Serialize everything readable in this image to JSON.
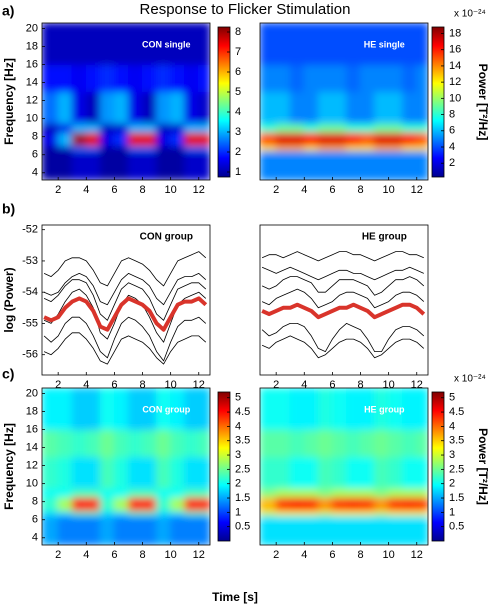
{
  "title": "Response to Flicker Stimulation",
  "panel_labels": [
    "a)",
    "b)",
    "c)"
  ],
  "xlabel": "Time [s]",
  "chart_data": [
    {
      "type": "heatmap",
      "title": "CON single",
      "ylabel": "Frequency [Hz]",
      "xlim": [
        0.85,
        12.8
      ],
      "xticks": [
        2,
        4,
        6,
        8,
        10,
        12
      ],
      "ylim": [
        3.2,
        20.6
      ],
      "yticks": [
        4,
        6,
        8,
        10,
        12,
        14,
        16,
        18,
        20
      ],
      "xbins": [
        0.85,
        2,
        3,
        4,
        5,
        6,
        7,
        8,
        9,
        10,
        11,
        12,
        12.8
      ],
      "ybins": [
        3.2,
        6.5,
        7,
        8.5,
        9.5,
        13,
        16,
        20.6
      ],
      "z": [
        [
          1,
          1,
          1.3,
          1.3,
          1,
          1,
          1.3,
          1.3,
          1,
          1,
          1.3,
          1.3
        ],
        [
          1,
          1.2,
          2.5,
          2.5,
          1,
          1,
          2.5,
          2.5,
          1,
          1,
          2.5,
          2.5
        ],
        [
          1.5,
          3,
          8,
          7.5,
          1.5,
          2,
          7.5,
          7.5,
          1.5,
          2,
          7.5,
          7.5
        ],
        [
          1.2,
          1.5,
          3,
          3,
          1.2,
          1.3,
          3,
          3,
          1.2,
          1.3,
          3,
          3
        ],
        [
          2.5,
          3,
          1.5,
          1.2,
          2.8,
          3,
          1.5,
          1.2,
          2.8,
          3,
          1.5,
          1.3
        ],
        [
          1.8,
          1.8,
          1.6,
          1.8,
          2,
          1.8,
          1.6,
          1.8,
          2,
          1.8,
          1.6,
          1.8
        ],
        [
          1.2,
          1.2,
          1.2,
          1.2,
          1.2,
          1.2,
          1.2,
          1.2,
          1.2,
          1.2,
          1.2,
          1.2
        ]
      ],
      "colorbar": {
        "lim": [
          0.75,
          8.25
        ],
        "ticks": [
          1,
          2,
          3,
          4,
          5,
          6,
          7,
          8
        ]
      }
    },
    {
      "type": "heatmap",
      "title": "HE single",
      "xlim": [
        0.85,
        12.8
      ],
      "xticks": [
        2,
        4,
        6,
        8,
        10,
        12
      ],
      "ylim": [
        3.2,
        20.6
      ],
      "xbins": [
        0.85,
        2,
        3,
        4,
        5,
        6,
        7,
        8,
        9,
        10,
        11,
        12,
        12.8
      ],
      "ybins": [
        3.2,
        6.5,
        7,
        8.5,
        9.5,
        13,
        16,
        20.6
      ],
      "z": [
        [
          5,
          5,
          5,
          5,
          5,
          5,
          5,
          5,
          5,
          5,
          5,
          5
        ],
        [
          12,
          13,
          13,
          12,
          13,
          13,
          12,
          12,
          13,
          13,
          12,
          12
        ],
        [
          15,
          17,
          17,
          16,
          17,
          17,
          16,
          15,
          17,
          17,
          16,
          15
        ],
        [
          8,
          9,
          9,
          8,
          9,
          9,
          8,
          8,
          9,
          9,
          8,
          8
        ],
        [
          6,
          6,
          5,
          5,
          6,
          6,
          5,
          5,
          6,
          6,
          5,
          5
        ],
        [
          5,
          5,
          4.5,
          5,
          5,
          5,
          4.5,
          5,
          5,
          5,
          4.5,
          5
        ],
        [
          4,
          4,
          4,
          4,
          4,
          4,
          4,
          4,
          4,
          4,
          4,
          4
        ]
      ],
      "colorbar": {
        "lim": [
          0.3,
          18.8
        ],
        "ticks": [
          2,
          4,
          6,
          8,
          10,
          12,
          14,
          16,
          18
        ],
        "label": "Power [T²/Hz]",
        "note": "x 10⁻²⁴"
      }
    },
    {
      "type": "line",
      "title": "CON group",
      "ylabel": "log (Power)",
      "xlim": [
        0.85,
        12.8
      ],
      "xticks": [
        2,
        4,
        6,
        8,
        10,
        12
      ],
      "ylim": [
        -56.65,
        -51.85
      ],
      "yticks": [
        -56,
        -55,
        -54,
        -53,
        -52
      ],
      "x": [
        1,
        1.5,
        2,
        2.5,
        3,
        3.5,
        4,
        4.5,
        5,
        5.5,
        6,
        6.5,
        7,
        7.5,
        8,
        8.5,
        9,
        9.5,
        10,
        10.5,
        11,
        11.5,
        12,
        12.5
      ],
      "series": [
        {
          "color": "#000000",
          "values": [
            -53.4,
            -53.5,
            -53.3,
            -53.0,
            -52.9,
            -52.9,
            -53.0,
            -53.3,
            -53.7,
            -53.8,
            -53.4,
            -53.0,
            -52.9,
            -53.0,
            -53.1,
            -53.3,
            -53.6,
            -53.8,
            -53.4,
            -53.0,
            -52.9,
            -52.8,
            -52.7,
            -52.9
          ]
        },
        {
          "color": "#000000",
          "values": [
            -54.2,
            -54.3,
            -54.1,
            -53.8,
            -53.6,
            -53.6,
            -53.7,
            -54.1,
            -54.7,
            -54.9,
            -54.4,
            -53.9,
            -53.7,
            -53.8,
            -53.9,
            -54.2,
            -54.7,
            -54.9,
            -54.4,
            -53.9,
            -53.8,
            -53.7,
            -53.7,
            -53.9
          ]
        },
        {
          "color": "#000000",
          "values": [
            -55.4,
            -55.6,
            -55.4,
            -55.0,
            -54.8,
            -54.8,
            -55.0,
            -55.4,
            -55.9,
            -56.1,
            -55.5,
            -55.0,
            -54.8,
            -54.9,
            -55.1,
            -55.4,
            -55.9,
            -56.2,
            -55.6,
            -55.1,
            -54.9,
            -54.9,
            -54.8,
            -55.0
          ]
        },
        {
          "color": "#000000",
          "values": [
            -54.9,
            -55.0,
            -54.7,
            -54.3,
            -54.0,
            -53.9,
            -54.1,
            -54.5,
            -55.3,
            -55.5,
            -55.0,
            -54.4,
            -54.1,
            -54.2,
            -54.4,
            -54.8,
            -55.3,
            -55.6,
            -55.0,
            -54.4,
            -54.2,
            -54.1,
            -54.0,
            -54.2
          ]
        },
        {
          "color": "#000000",
          "values": [
            -55.9,
            -56.0,
            -55.8,
            -55.5,
            -55.3,
            -55.3,
            -55.5,
            -55.8,
            -56.2,
            -56.3,
            -55.9,
            -55.5,
            -55.4,
            -55.5,
            -55.6,
            -55.8,
            -56.1,
            -56.3,
            -55.9,
            -55.6,
            -55.5,
            -55.4,
            -55.4,
            -55.6
          ]
        },
        {
          "color": "#000000",
          "values": [
            -54.0,
            -54.1,
            -54.0,
            -53.7,
            -53.5,
            -53.4,
            -53.5,
            -53.8,
            -54.3,
            -54.4,
            -54.0,
            -53.6,
            -53.4,
            -53.5,
            -53.6,
            -53.8,
            -54.2,
            -54.4,
            -54.0,
            -53.6,
            -53.5,
            -53.5,
            -53.4,
            -53.6
          ]
        },
        {
          "color": "#d9342b",
          "values": [
            -54.8,
            -54.9,
            -54.8,
            -54.5,
            -54.3,
            -54.2,
            -54.3,
            -54.6,
            -55.1,
            -55.2,
            -54.8,
            -54.4,
            -54.2,
            -54.3,
            -54.4,
            -54.6,
            -55.0,
            -55.2,
            -54.8,
            -54.4,
            -54.3,
            -54.3,
            -54.2,
            -54.4
          ]
        }
      ]
    },
    {
      "type": "line",
      "title": "HE group",
      "xlim": [
        0.85,
        12.8
      ],
      "xticks": [
        2,
        4,
        6,
        8,
        10,
        12
      ],
      "ylim": [
        -56.65,
        -51.85
      ],
      "x": [
        1,
        1.5,
        2,
        2.5,
        3,
        3.5,
        4,
        4.5,
        5,
        5.5,
        6,
        6.5,
        7,
        7.5,
        8,
        8.5,
        9,
        9.5,
        10,
        10.5,
        11,
        11.5,
        12,
        12.5
      ],
      "series": [
        {
          "color": "#000000",
          "values": [
            -52.9,
            -52.8,
            -52.8,
            -52.9,
            -52.8,
            -52.7,
            -52.8,
            -52.9,
            -53.0,
            -52.9,
            -52.8,
            -52.7,
            -52.7,
            -52.8,
            -52.8,
            -52.9,
            -53.0,
            -52.9,
            -52.8,
            -52.7,
            -52.7,
            -52.8,
            -52.8,
            -52.9
          ]
        },
        {
          "color": "#000000",
          "values": [
            -53.8,
            -53.9,
            -53.8,
            -53.6,
            -53.5,
            -53.5,
            -53.6,
            -53.7,
            -54.0,
            -54.0,
            -53.8,
            -53.6,
            -53.6,
            -53.6,
            -53.7,
            -53.8,
            -54.1,
            -54.0,
            -53.8,
            -53.6,
            -53.6,
            -53.5,
            -53.6,
            -53.8
          ]
        },
        {
          "color": "#000000",
          "values": [
            -55.2,
            -55.4,
            -55.3,
            -55.1,
            -55.0,
            -55.0,
            -55.1,
            -55.4,
            -55.8,
            -55.9,
            -55.5,
            -55.2,
            -55.0,
            -55.1,
            -55.2,
            -55.5,
            -55.9,
            -55.9,
            -55.5,
            -55.2,
            -55.1,
            -55.1,
            -55.2,
            -55.4
          ]
        },
        {
          "color": "#000000",
          "values": [
            -54.3,
            -54.4,
            -54.2,
            -54.1,
            -54.0,
            -53.9,
            -54.0,
            -54.2,
            -54.5,
            -54.4,
            -54.3,
            -54.1,
            -54.0,
            -54.0,
            -54.1,
            -54.2,
            -54.5,
            -54.4,
            -54.3,
            -54.1,
            -54.0,
            -54.0,
            -54.1,
            -54.3
          ]
        },
        {
          "color": "#000000",
          "values": [
            -55.7,
            -55.8,
            -55.6,
            -55.5,
            -55.4,
            -55.5,
            -55.6,
            -55.8,
            -56.1,
            -56.0,
            -55.8,
            -55.6,
            -55.5,
            -55.5,
            -55.6,
            -55.8,
            -56.1,
            -56.0,
            -55.8,
            -55.6,
            -55.5,
            -55.5,
            -55.6,
            -55.8
          ]
        },
        {
          "color": "#000000",
          "values": [
            -53.2,
            -53.3,
            -53.4,
            -53.3,
            -53.2,
            -53.3,
            -53.4,
            -53.5,
            -53.6,
            -53.5,
            -53.4,
            -53.3,
            -53.3,
            -53.4,
            -53.4,
            -53.5,
            -53.6,
            -53.5,
            -53.4,
            -53.3,
            -53.3,
            -53.2,
            -53.3,
            -53.4
          ]
        },
        {
          "color": "#d9342b",
          "values": [
            -54.6,
            -54.7,
            -54.6,
            -54.5,
            -54.5,
            -54.4,
            -54.5,
            -54.6,
            -54.8,
            -54.7,
            -54.6,
            -54.5,
            -54.5,
            -54.4,
            -54.5,
            -54.6,
            -54.8,
            -54.7,
            -54.6,
            -54.5,
            -54.4,
            -54.4,
            -54.5,
            -54.7
          ]
        }
      ]
    },
    {
      "type": "heatmap",
      "title": "CON group",
      "ylabel": "Frequency [Hz]",
      "xlim": [
        0.85,
        12.8
      ],
      "xticks": [
        2,
        4,
        6,
        8,
        10,
        12
      ],
      "ylim": [
        3.2,
        20.6
      ],
      "yticks": [
        4,
        6,
        8,
        10,
        12,
        14,
        16,
        18,
        20
      ],
      "xbins": [
        0.85,
        2,
        3,
        4,
        5,
        6,
        7,
        8,
        9,
        10,
        11,
        12,
        12.8
      ],
      "ybins": [
        3.2,
        6.5,
        7,
        8.5,
        9.5,
        13,
        16,
        20.6
      ],
      "z": [
        [
          1.5,
          1.3,
          1.3,
          1.3,
          1.5,
          1.3,
          1.3,
          1.3,
          1.5,
          1.3,
          1.3,
          1.3
        ],
        [
          1.8,
          1.8,
          2.3,
          2.3,
          1.8,
          1.8,
          2.3,
          2.3,
          1.8,
          1.8,
          2.3,
          2.3
        ],
        [
          2.2,
          2.8,
          4.5,
          4.4,
          2.2,
          2.8,
          4.4,
          4.4,
          2.2,
          2.8,
          4.4,
          4.4
        ],
        [
          2,
          2,
          2.3,
          2.3,
          2,
          2,
          2.3,
          2.3,
          2,
          2,
          2.3,
          2.3
        ],
        [
          2.2,
          2.1,
          1.8,
          1.8,
          2.3,
          2.1,
          1.8,
          1.8,
          2.3,
          2.1,
          1.8,
          1.8
        ],
        [
          2.4,
          2.3,
          2.2,
          2.3,
          2.5,
          2.3,
          2.2,
          2.3,
          2.5,
          2.3,
          2.2,
          2.3
        ],
        [
          1.9,
          1.9,
          1.7,
          1.7,
          2,
          1.9,
          1.7,
          1.7,
          2,
          1.9,
          1.7,
          1.7
        ]
      ],
      "colorbar": {
        "lim": [
          0,
          5.2
        ],
        "ticks": [
          0.5,
          1,
          1.5,
          2,
          2.5,
          3,
          3.5,
          4,
          4.5,
          5
        ]
      }
    },
    {
      "type": "heatmap",
      "title": "HE group",
      "xlim": [
        0.85,
        12.8
      ],
      "xticks": [
        2,
        4,
        6,
        8,
        10,
        12
      ],
      "ylim": [
        3.2,
        20.6
      ],
      "xbins": [
        0.85,
        2,
        3,
        4,
        5,
        6,
        7,
        8,
        9,
        10,
        11,
        12,
        12.8
      ],
      "ybins": [
        3.2,
        6.5,
        7,
        8.5,
        9.5,
        13,
        16,
        20.6
      ],
      "z": [
        [
          1.8,
          1.8,
          1.8,
          1.8,
          1.8,
          1.8,
          1.8,
          1.8,
          1.8,
          1.8,
          1.8,
          1.8
        ],
        [
          3,
          3.2,
          3.2,
          3.2,
          3,
          3.2,
          3.2,
          3.2,
          3,
          3.2,
          3.2,
          3.2
        ],
        [
          3.6,
          4.3,
          4.5,
          4.4,
          3.8,
          4.3,
          4.4,
          4.3,
          3.8,
          4.3,
          4.4,
          4.3
        ],
        [
          2.6,
          2.8,
          2.8,
          2.8,
          2.6,
          2.8,
          2.8,
          2.8,
          2.6,
          2.8,
          2.8,
          2.8
        ],
        [
          2.2,
          2.2,
          2,
          2,
          2.3,
          2.2,
          2,
          2,
          2.3,
          2.2,
          2,
          2
        ],
        [
          2.4,
          2.4,
          2.3,
          2.4,
          2.5,
          2.4,
          2.3,
          2.4,
          2.5,
          2.4,
          2.3,
          2.4
        ],
        [
          2,
          2,
          1.9,
          1.9,
          2.1,
          2,
          1.9,
          1.9,
          2.1,
          2,
          1.9,
          1.9
        ]
      ],
      "colorbar": {
        "lim": [
          0,
          5.2
        ],
        "ticks": [
          0.5,
          1,
          1.5,
          2,
          2.5,
          3,
          3.5,
          4,
          4.5,
          5
        ],
        "label": "Power [T²/Hz]",
        "note": "x 10⁻²⁴"
      }
    }
  ]
}
